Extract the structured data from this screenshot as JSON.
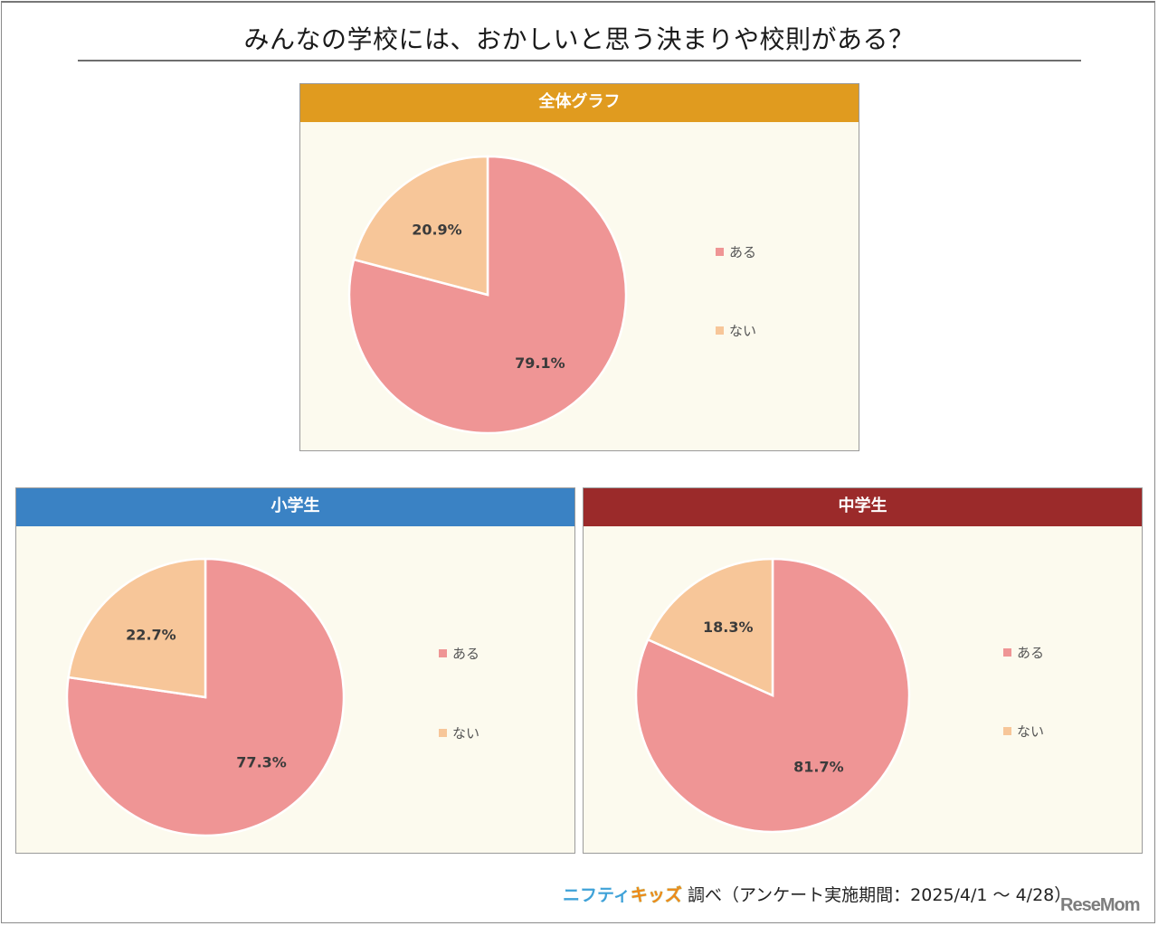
{
  "title": "みんなの学校には、おかしいと思う決まりや校則がある？",
  "colors": {
    "aru": "#ef9595",
    "nai": "#f7c699",
    "panel_bg": "#fcfaee",
    "header_all": "#e09b1f",
    "header_elementary": "#3a82c4",
    "header_junior": "#9b2a2a"
  },
  "panels": {
    "all": {
      "header": "全体グラフ"
    },
    "elementary": {
      "header": "小学生"
    },
    "junior": {
      "header": "中学生"
    }
  },
  "legend": {
    "aru": "ある",
    "nai": "ない"
  },
  "chart_data": [
    {
      "type": "pie",
      "title": "全体グラフ",
      "categories": [
        "ある",
        "ない"
      ],
      "values": [
        79.1,
        20.9
      ],
      "labels": [
        "79.1%",
        "20.9%"
      ],
      "legend_position": "right"
    },
    {
      "type": "pie",
      "title": "小学生",
      "categories": [
        "ある",
        "ない"
      ],
      "values": [
        77.3,
        22.7
      ],
      "labels": [
        "77.3%",
        "22.7%"
      ],
      "legend_position": "right"
    },
    {
      "type": "pie",
      "title": "中学生",
      "categories": [
        "ある",
        "ない"
      ],
      "values": [
        81.7,
        18.3
      ],
      "labels": [
        "81.7%",
        "18.3%"
      ],
      "legend_position": "right"
    }
  ],
  "footer": {
    "brand_part1": "ニフティ",
    "brand_part2": "キッズ",
    "text": "調べ（アンケート実施期間：2025/4/1 ～ 4/28）",
    "watermark": "ReseMom"
  }
}
